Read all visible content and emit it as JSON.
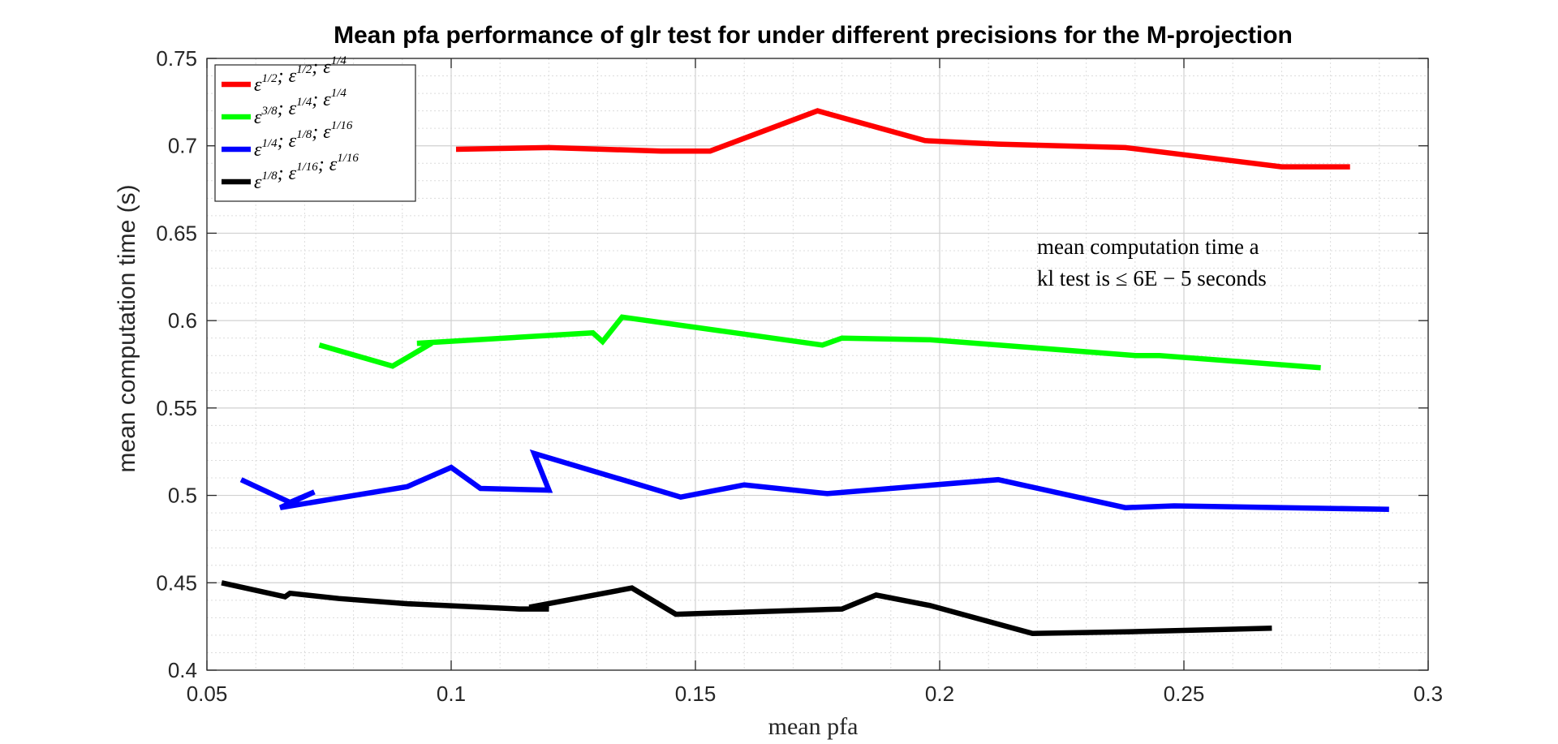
{
  "chart_data": {
    "type": "line",
    "title": "Mean pfa performance of glr test for under different precisions for the M-projection",
    "xlabel": "mean pfa",
    "ylabel": "mean computation time (s)",
    "xlim": [
      0.05,
      0.3
    ],
    "ylim": [
      0.4,
      0.75
    ],
    "xticks": [
      0.05,
      0.1,
      0.15,
      0.2,
      0.25,
      0.3
    ],
    "xtick_labels": [
      "0.05",
      "0.1",
      "0.15",
      "0.2",
      "0.25",
      "0.3"
    ],
    "yticks": [
      0.4,
      0.45,
      0.5,
      0.55,
      0.6,
      0.65,
      0.7,
      0.75
    ],
    "ytick_labels": [
      "0.4",
      "0.45",
      "0.5",
      "0.55",
      "0.6",
      "0.65",
      "0.7",
      "0.75"
    ],
    "grid": true,
    "minor_grid": true,
    "legend_position": "top-left",
    "annotation": [
      "mean computation time a",
      "kl test is ≤ 6E − 5 seconds"
    ],
    "series": [
      {
        "name": "ε^{1/2}; ε^{1/2}; ε^{1/4}",
        "legend_parts": [
          [
            "ε",
            "1/2"
          ],
          [
            "; ε",
            "1/2"
          ],
          [
            "; ε",
            "1/4"
          ]
        ],
        "color": "#ff0000",
        "x": [
          0.101,
          0.12,
          0.143,
          0.153,
          0.175,
          0.197,
          0.212,
          0.238,
          0.27,
          0.284
        ],
        "y": [
          0.698,
          0.699,
          0.697,
          0.697,
          0.72,
          0.703,
          0.701,
          0.699,
          0.688,
          0.688
        ]
      },
      {
        "name": "ε^{3/8}; ε^{1/4}; ε^{1/4}",
        "legend_parts": [
          [
            "ε",
            "3/8"
          ],
          [
            "; ε",
            "1/4"
          ],
          [
            "; ε",
            "1/4"
          ]
        ],
        "color": "#00ff00",
        "x": [
          0.073,
          0.088,
          0.096,
          0.093,
          0.129,
          0.131,
          0.135,
          0.176,
          0.18,
          0.198,
          0.24,
          0.245,
          0.278
        ],
        "y": [
          0.586,
          0.574,
          0.587,
          0.587,
          0.593,
          0.588,
          0.602,
          0.586,
          0.59,
          0.589,
          0.58,
          0.58,
          0.573
        ]
      },
      {
        "name": "ε^{1/4}; ε^{1/8}; ε^{1/16}",
        "legend_parts": [
          [
            "ε",
            "1/4"
          ],
          [
            "; ε",
            "1/8"
          ],
          [
            "; ε",
            "1/16"
          ]
        ],
        "color": "#0000ff",
        "x": [
          0.057,
          0.067,
          0.072,
          0.065,
          0.091,
          0.1,
          0.106,
          0.12,
          0.117,
          0.147,
          0.16,
          0.177,
          0.212,
          0.238,
          0.248,
          0.292
        ],
        "y": [
          0.509,
          0.496,
          0.502,
          0.493,
          0.505,
          0.516,
          0.504,
          0.503,
          0.524,
          0.499,
          0.506,
          0.501,
          0.509,
          0.493,
          0.494,
          0.492
        ]
      },
      {
        "name": "ε^{1/8}; ε^{1/16}; ε^{1/16}",
        "legend_parts": [
          [
            "ε",
            "1/8"
          ],
          [
            "; ε",
            "1/16"
          ],
          [
            "; ε",
            "1/16"
          ]
        ],
        "color": "#000000",
        "x": [
          0.053,
          0.066,
          0.067,
          0.077,
          0.091,
          0.114,
          0.12,
          0.116,
          0.137,
          0.146,
          0.18,
          0.187,
          0.198,
          0.219,
          0.239,
          0.268
        ],
        "y": [
          0.45,
          0.442,
          0.444,
          0.441,
          0.438,
          0.435,
          0.435,
          0.436,
          0.447,
          0.432,
          0.435,
          0.443,
          0.437,
          0.421,
          0.422,
          0.424
        ]
      }
    ]
  }
}
